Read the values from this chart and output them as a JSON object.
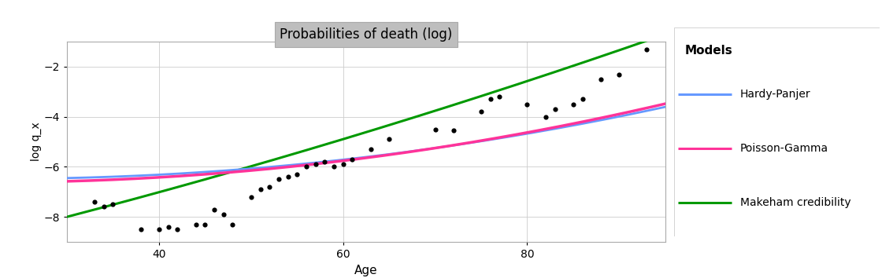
{
  "title": "Probabilities of death (log)",
  "xlabel": "Age",
  "ylabel": "log q_x",
  "xlim": [
    30,
    95
  ],
  "ylim": [
    -9.0,
    -1.0
  ],
  "yticks": [
    -8,
    -6,
    -4,
    -2
  ],
  "xticks": [
    40,
    60,
    80
  ],
  "background_color": "#FFFFFF",
  "panel_background": "#FFFFFF",
  "title_bg": "#BEBEBE",
  "scatter_points": [
    [
      33,
      -7.4
    ],
    [
      34,
      -7.6
    ],
    [
      35,
      -7.5
    ],
    [
      38,
      -8.5
    ],
    [
      40,
      -8.5
    ],
    [
      41,
      -8.4
    ],
    [
      42,
      -8.5
    ],
    [
      44,
      -8.3
    ],
    [
      45,
      -8.3
    ],
    [
      46,
      -7.7
    ],
    [
      47,
      -7.9
    ],
    [
      48,
      -8.3
    ],
    [
      50,
      -7.2
    ],
    [
      51,
      -6.9
    ],
    [
      52,
      -6.8
    ],
    [
      53,
      -6.5
    ],
    [
      54,
      -6.4
    ],
    [
      55,
      -6.3
    ],
    [
      56,
      -6.0
    ],
    [
      57,
      -5.9
    ],
    [
      58,
      -5.8
    ],
    [
      59,
      -6.0
    ],
    [
      60,
      -5.9
    ],
    [
      61,
      -5.7
    ],
    [
      63,
      -5.3
    ],
    [
      65,
      -4.9
    ],
    [
      70,
      -4.5
    ],
    [
      72,
      -4.55
    ],
    [
      75,
      -3.8
    ],
    [
      76,
      -3.3
    ],
    [
      77,
      -3.2
    ],
    [
      80,
      -3.5
    ],
    [
      82,
      -4.0
    ],
    [
      83,
      -3.7
    ],
    [
      85,
      -3.5
    ],
    [
      86,
      -3.3
    ],
    [
      88,
      -2.5
    ],
    [
      90,
      -2.3
    ],
    [
      93,
      -1.3
    ]
  ],
  "hardy_panjer_color": "#6699FF",
  "poisson_gamma_color": "#FF3399",
  "makeham_color": "#009900",
  "legend_title": "Models",
  "legend_labels": [
    "Hardy-Panjer",
    "Poisson-Gamma",
    "Makeham credibility"
  ],
  "hp_x0": 30,
  "hp_y0": -6.45,
  "hp_slope": 0.008,
  "hp_curv": 0.00055,
  "pg_x0": 30,
  "pg_y0": -6.58,
  "pg_slope": 0.01,
  "pg_curv": 0.00058,
  "mk_x0": 30,
  "mk_y0": -8.0,
  "mk_slope": 0.096,
  "mk_curv": 0.00025
}
